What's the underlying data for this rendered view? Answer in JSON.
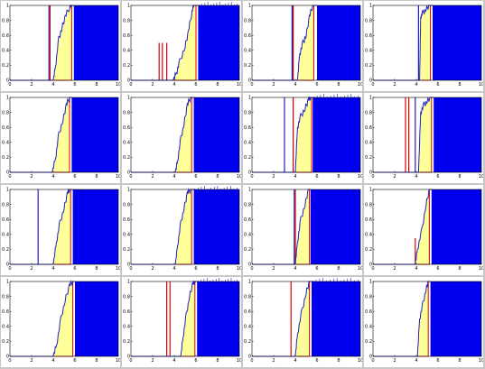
{
  "chart_data": {
    "type": "line",
    "layout": {
      "rows": 4,
      "cols": 4
    },
    "panel_axes": {
      "xlim": [
        0,
        10
      ],
      "ylim": [
        0,
        1
      ],
      "xticks": [
        "0",
        "2",
        "4",
        "6",
        "8",
        "10"
      ],
      "yticks": [
        "0",
        "0.2",
        "0.4",
        "0.6",
        "0.8",
        "1"
      ]
    },
    "colors": {
      "fill_region": "#ffff99",
      "block": "#0000ee",
      "trace": "#2020c8",
      "spike": "#dd0000",
      "figure_bg": "#c8c8c8",
      "axes_bg": "#ffffff"
    },
    "panels": [
      {
        "curve": [
          [
            4.0,
            0.0
          ],
          [
            4.2,
            0.18
          ],
          [
            4.5,
            0.55
          ],
          [
            4.8,
            0.7
          ],
          [
            5.1,
            0.85
          ],
          [
            5.5,
            0.98
          ],
          [
            5.7,
            1.0
          ]
        ],
        "fill": [
          4.1,
          5.7
        ],
        "block": [
          5.9,
          10
        ],
        "lines": [
          {
            "x": 3.6,
            "y": 1.0,
            "color": "blue"
          },
          {
            "x": 3.7,
            "y": 1.0,
            "color": "red"
          }
        ],
        "noise": false
      },
      {
        "curve": [
          [
            3.9,
            0.0
          ],
          [
            4.2,
            0.1
          ],
          [
            4.5,
            0.25
          ],
          [
            5.0,
            0.45
          ],
          [
            5.3,
            0.65
          ],
          [
            5.6,
            0.9
          ],
          [
            5.8,
            1.0
          ]
        ],
        "fill": [
          4.0,
          6.0
        ],
        "block": [
          6.2,
          10
        ],
        "lines": [
          {
            "x": 2.6,
            "y": 0.5,
            "color": "red"
          },
          {
            "x": 2.9,
            "y": 0.5,
            "color": "red"
          },
          {
            "x": 3.3,
            "y": 0.5,
            "color": "red"
          }
        ],
        "noise": true
      },
      {
        "curve": [
          [
            4.2,
            0.0
          ],
          [
            4.4,
            0.35
          ],
          [
            4.7,
            0.5
          ],
          [
            5.0,
            0.6
          ],
          [
            5.3,
            0.85
          ],
          [
            5.6,
            1.0
          ]
        ],
        "fill": [
          4.3,
          5.7
        ],
        "block": [
          6.0,
          10
        ],
        "lines": [
          {
            "x": 3.7,
            "y": 1.0,
            "color": "blue"
          },
          {
            "x": 3.8,
            "y": 1.0,
            "color": "red"
          }
        ],
        "noise": false
      },
      {
        "curve": [
          [
            4.3,
            0.0
          ],
          [
            4.4,
            0.85
          ],
          [
            4.6,
            0.9
          ],
          [
            4.9,
            0.95
          ],
          [
            5.2,
            1.0
          ]
        ],
        "fill": [
          4.4,
          5.3
        ],
        "block": [
          5.5,
          10
        ],
        "lines": [
          {
            "x": 4.2,
            "y": 1.0,
            "color": "blue"
          }
        ],
        "noise": false
      },
      {
        "curve": [
          [
            3.9,
            0.0
          ],
          [
            4.2,
            0.18
          ],
          [
            4.5,
            0.5
          ],
          [
            4.9,
            0.7
          ],
          [
            5.2,
            0.9
          ],
          [
            5.5,
            1.0
          ]
        ],
        "fill": [
          4.0,
          5.5
        ],
        "block": [
          5.7,
          10
        ],
        "lines": [],
        "noise": false
      },
      {
        "curve": [
          [
            4.1,
            0.0
          ],
          [
            4.3,
            0.15
          ],
          [
            4.6,
            0.45
          ],
          [
            4.9,
            0.65
          ],
          [
            5.2,
            0.9
          ],
          [
            5.5,
            1.0
          ]
        ],
        "fill": [
          4.2,
          5.6
        ],
        "block": [
          5.8,
          10
        ],
        "lines": [],
        "noise": false
      },
      {
        "curve": [
          [
            4.0,
            0.0
          ],
          [
            4.2,
            0.6
          ],
          [
            4.5,
            0.75
          ],
          [
            4.9,
            0.85
          ],
          [
            5.2,
            0.97
          ],
          [
            5.4,
            1.0
          ]
        ],
        "fill": [
          4.1,
          5.5
        ],
        "block": [
          5.6,
          10
        ],
        "lines": [
          {
            "x": 3.0,
            "y": 1.0,
            "color": "blue"
          },
          {
            "x": 3.8,
            "y": 1.0,
            "color": "red"
          }
        ],
        "noise": true
      },
      {
        "curve": [
          [
            4.2,
            0.0
          ],
          [
            4.4,
            0.8
          ],
          [
            4.7,
            0.9
          ],
          [
            5.0,
            0.95
          ],
          [
            5.3,
            1.0
          ]
        ],
        "fill": [
          4.3,
          5.4
        ],
        "block": [
          5.6,
          10
        ],
        "lines": [
          {
            "x": 3.0,
            "y": 1.0,
            "color": "red"
          },
          {
            "x": 3.3,
            "y": 1.0,
            "color": "red"
          },
          {
            "x": 3.9,
            "y": 1.0,
            "color": "blue"
          }
        ],
        "noise": false
      },
      {
        "curve": [
          [
            4.0,
            0.0
          ],
          [
            4.3,
            0.3
          ],
          [
            4.6,
            0.55
          ],
          [
            5.0,
            0.75
          ],
          [
            5.3,
            0.95
          ],
          [
            5.5,
            1.0
          ]
        ],
        "fill": [
          4.1,
          5.6
        ],
        "block": [
          5.8,
          10
        ],
        "lines": [
          {
            "x": 2.6,
            "y": 1.0,
            "color": "blue"
          }
        ],
        "noise": false
      },
      {
        "curve": [
          [
            4.1,
            0.0
          ],
          [
            4.3,
            0.25
          ],
          [
            4.6,
            0.55
          ],
          [
            4.9,
            0.75
          ],
          [
            5.2,
            0.95
          ],
          [
            5.5,
            1.0
          ]
        ],
        "fill": [
          4.2,
          5.6
        ],
        "block": [
          5.8,
          10
        ],
        "lines": [],
        "noise": true
      },
      {
        "curve": [
          [
            4.0,
            0.0
          ],
          [
            4.2,
            0.3
          ],
          [
            4.5,
            0.6
          ],
          [
            4.9,
            0.8
          ],
          [
            5.2,
            1.0
          ]
        ],
        "fill": [
          4.1,
          5.3
        ],
        "block": [
          5.4,
          10
        ],
        "lines": [
          {
            "x": 3.9,
            "y": 1.0,
            "color": "blue"
          },
          {
            "x": 4.0,
            "y": 1.0,
            "color": "red"
          }
        ],
        "noise": false
      },
      {
        "curve": [
          [
            3.9,
            0.0
          ],
          [
            4.1,
            0.2
          ],
          [
            4.5,
            0.45
          ],
          [
            4.9,
            0.8
          ],
          [
            5.2,
            1.0
          ]
        ],
        "fill": [
          4.0,
          5.2
        ],
        "block": [
          5.4,
          10
        ],
        "lines": [
          {
            "x": 3.9,
            "y": 0.35,
            "color": "red"
          }
        ],
        "noise": false
      },
      {
        "curve": [
          [
            4.0,
            0.0
          ],
          [
            4.3,
            0.15
          ],
          [
            4.7,
            0.5
          ],
          [
            5.1,
            0.75
          ],
          [
            5.5,
            0.95
          ],
          [
            5.8,
            1.0
          ]
        ],
        "fill": [
          4.1,
          5.8
        ],
        "block": [
          6.0,
          10
        ],
        "lines": [],
        "noise": false
      },
      {
        "curve": [
          [
            4.6,
            0.0
          ],
          [
            4.8,
            0.25
          ],
          [
            5.1,
            0.55
          ],
          [
            5.4,
            0.8
          ],
          [
            5.7,
            0.97
          ],
          [
            5.9,
            1.0
          ]
        ],
        "fill": [
          4.7,
          5.9
        ],
        "block": [
          6.1,
          10
        ],
        "lines": [
          {
            "x": 3.3,
            "y": 1.0,
            "color": "red"
          },
          {
            "x": 3.6,
            "y": 1.0,
            "color": "red"
          }
        ],
        "noise": true
      },
      {
        "curve": [
          [
            4.0,
            0.0
          ],
          [
            4.2,
            0.3
          ],
          [
            4.6,
            0.6
          ],
          [
            5.0,
            0.85
          ],
          [
            5.3,
            1.0
          ]
        ],
        "fill": [
          4.1,
          5.3
        ],
        "block": [
          5.5,
          10
        ],
        "lines": [
          {
            "x": 3.6,
            "y": 1.0,
            "color": "red"
          }
        ],
        "noise": true
      },
      {
        "curve": [
          [
            4.1,
            0.0
          ],
          [
            4.3,
            0.5
          ],
          [
            4.6,
            0.7
          ],
          [
            4.9,
            0.9
          ],
          [
            5.1,
            1.0
          ]
        ],
        "fill": [
          4.1,
          5.1
        ],
        "block": [
          5.3,
          10
        ],
        "lines": [],
        "noise": false
      }
    ]
  }
}
